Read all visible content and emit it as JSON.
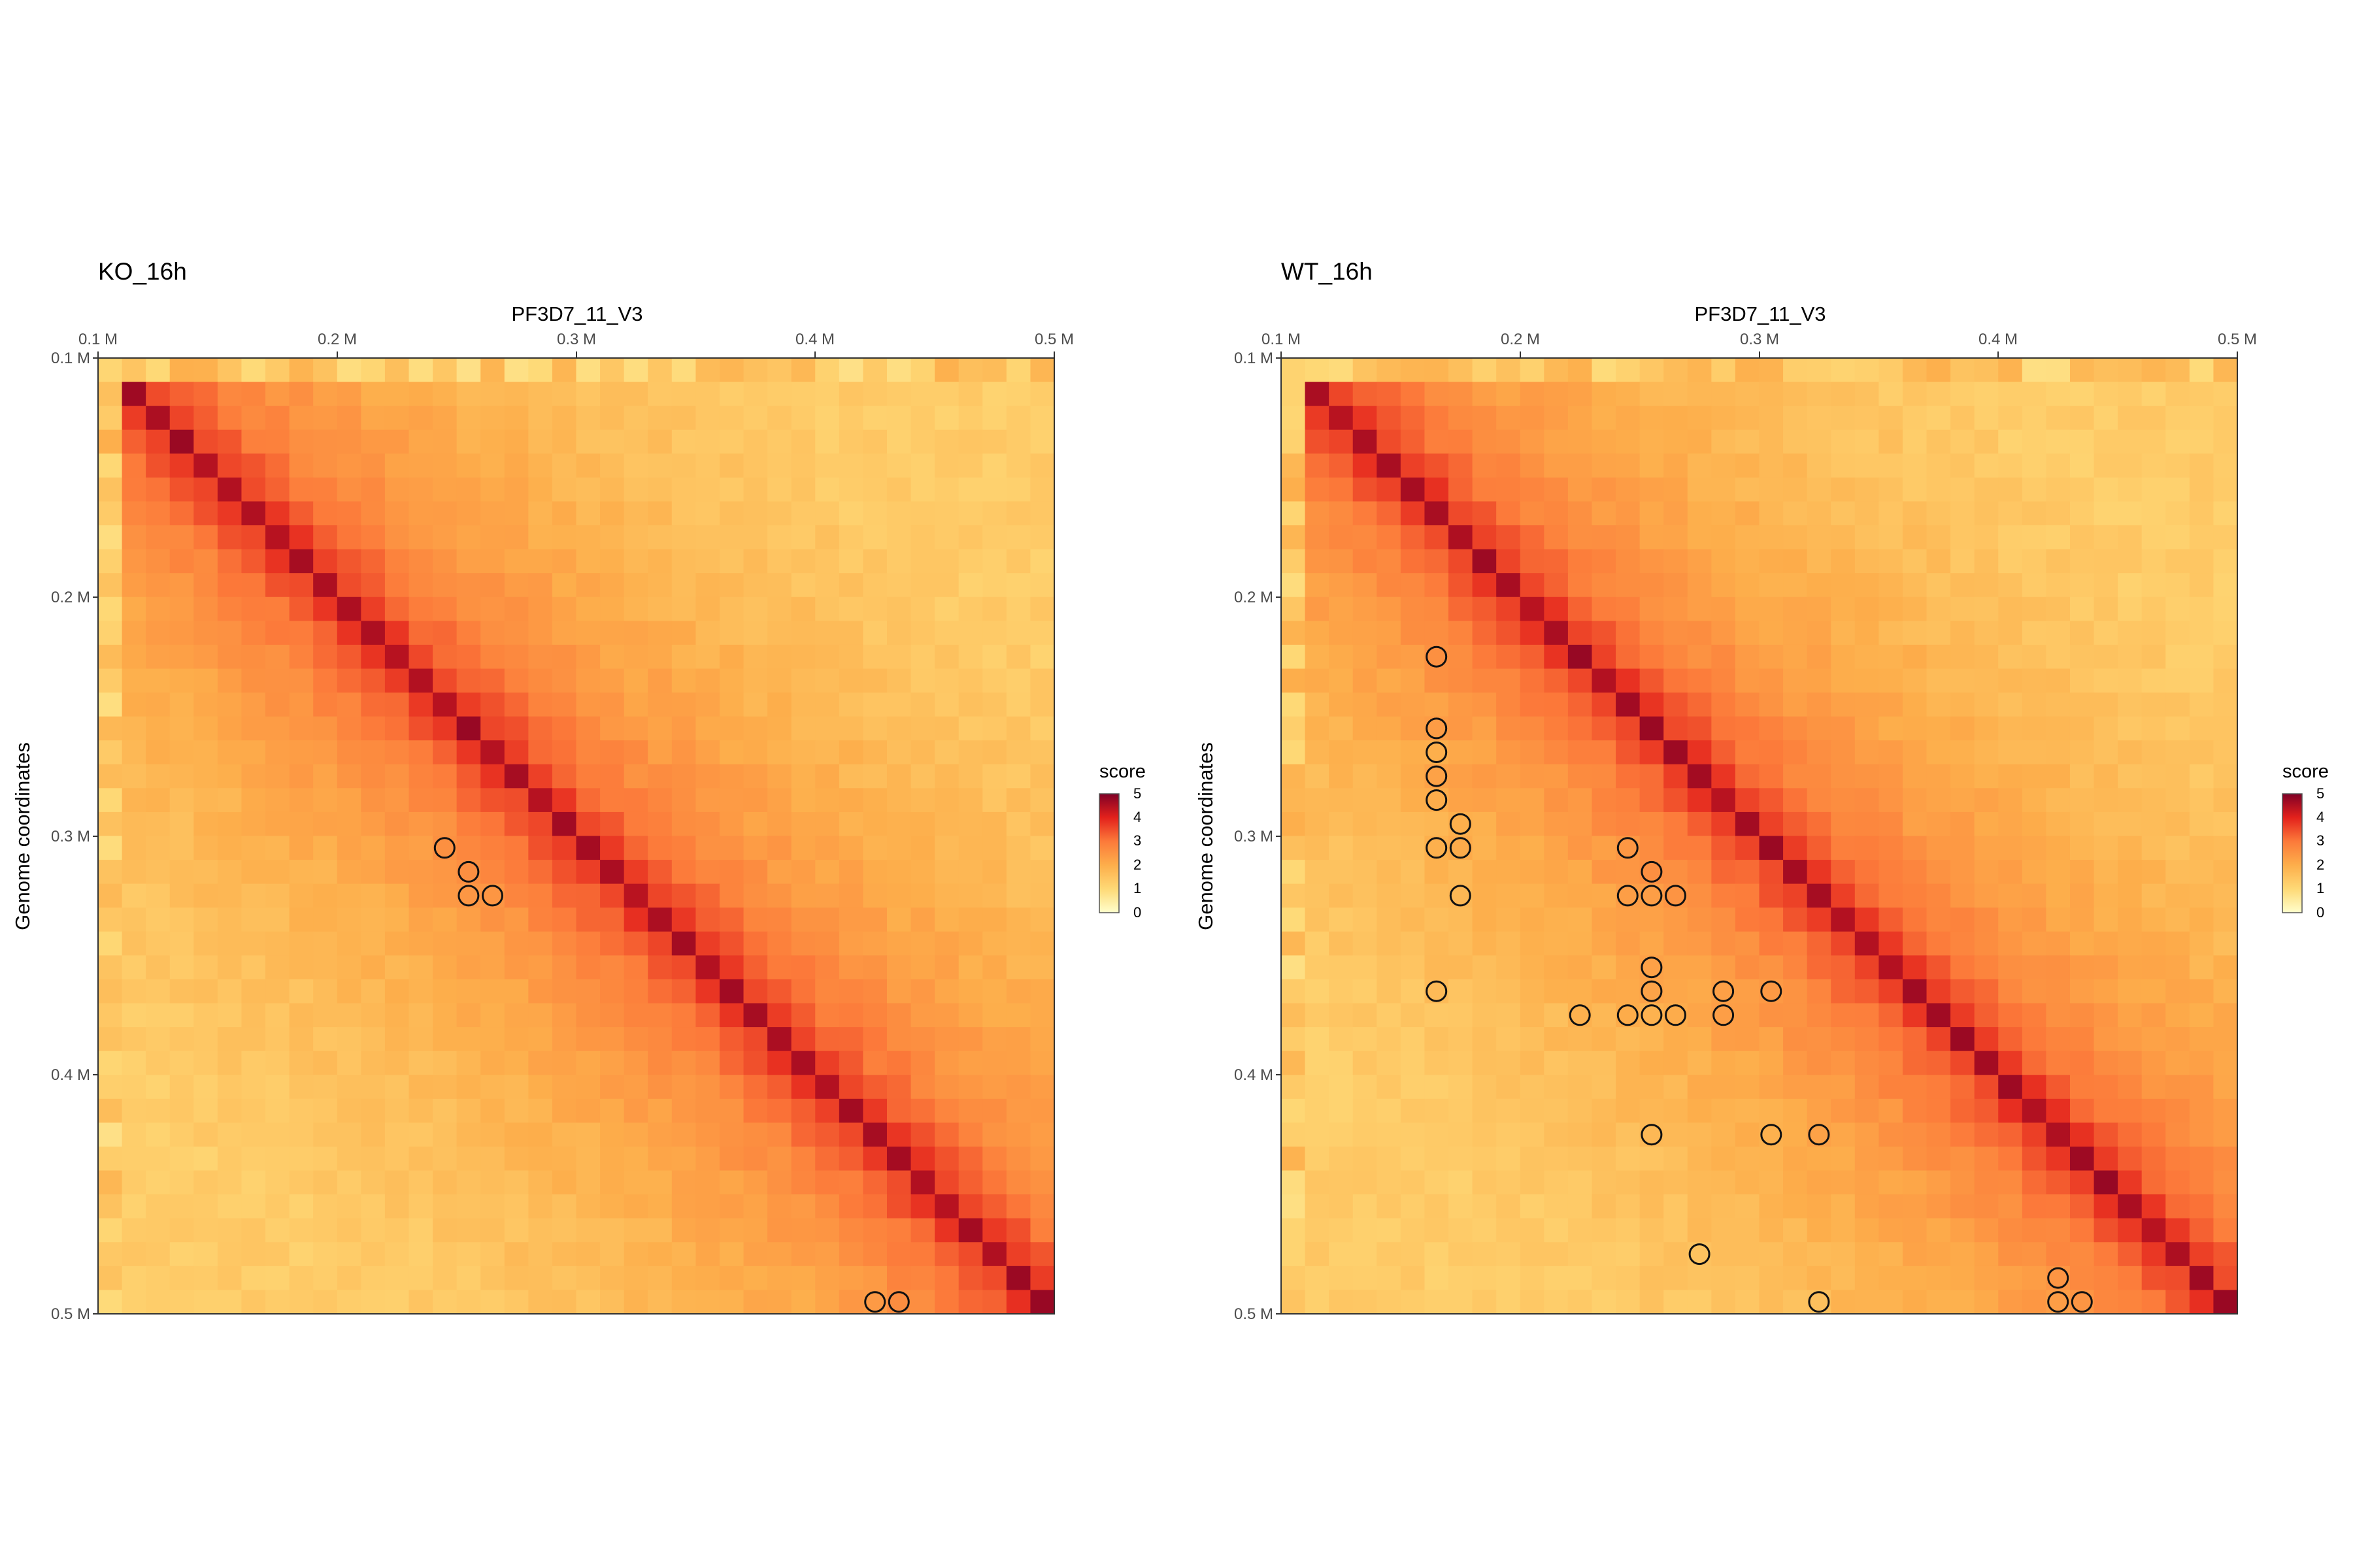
{
  "chart_data": [
    {
      "type": "heatmap",
      "title": "KO_16h",
      "xlabel": "PF3D7_11_V3",
      "ylabel": "Genome coordinates",
      "xlim": [
        100000,
        500000
      ],
      "ylim": [
        100000,
        500000
      ],
      "x_ticks": [
        "0.1 M",
        "0.2 M",
        "0.3 M",
        "0.4 M",
        "0.5 M"
      ],
      "y_ticks": [
        "0.1 M",
        "0.2 M",
        "0.3 M",
        "0.4 M",
        "0.5 M"
      ],
      "bin_size": 10000,
      "legend": {
        "title": "score",
        "ticks": [
          "0",
          "1",
          "2",
          "3",
          "4",
          "5"
        ],
        "range": [
          0,
          5
        ],
        "placement": "right"
      },
      "loops": [
        {
          "x": 245000,
          "y": 305000
        },
        {
          "x": 255000,
          "y": 315000
        },
        {
          "x": 255000,
          "y": 325000
        },
        {
          "x": 265000,
          "y": 325000
        },
        {
          "x": 425000,
          "y": 495000
        },
        {
          "x": 435000,
          "y": 495000
        }
      ]
    },
    {
      "type": "heatmap",
      "title": "WT_16h",
      "xlabel": "PF3D7_11_V3",
      "ylabel": "Genome coordinates",
      "xlim": [
        100000,
        500000
      ],
      "ylim": [
        100000,
        500000
      ],
      "x_ticks": [
        "0.1 M",
        "0.2 M",
        "0.3 M",
        "0.4 M",
        "0.5 M"
      ],
      "y_ticks": [
        "0.1 M",
        "0.2 M",
        "0.3 M",
        "0.4 M",
        "0.5 M"
      ],
      "bin_size": 10000,
      "legend": {
        "title": "score",
        "ticks": [
          "0",
          "1",
          "2",
          "3",
          "4",
          "5"
        ],
        "range": [
          0,
          5
        ],
        "placement": "right"
      },
      "loops": [
        {
          "x": 165000,
          "y": 225000
        },
        {
          "x": 165000,
          "y": 255000
        },
        {
          "x": 165000,
          "y": 265000
        },
        {
          "x": 165000,
          "y": 275000
        },
        {
          "x": 165000,
          "y": 285000
        },
        {
          "x": 175000,
          "y": 295000
        },
        {
          "x": 165000,
          "y": 305000
        },
        {
          "x": 175000,
          "y": 305000
        },
        {
          "x": 175000,
          "y": 325000
        },
        {
          "x": 165000,
          "y": 365000
        },
        {
          "x": 245000,
          "y": 305000
        },
        {
          "x": 255000,
          "y": 315000
        },
        {
          "x": 245000,
          "y": 325000
        },
        {
          "x": 255000,
          "y": 325000
        },
        {
          "x": 265000,
          "y": 325000
        },
        {
          "x": 255000,
          "y": 355000
        },
        {
          "x": 255000,
          "y": 365000
        },
        {
          "x": 285000,
          "y": 365000
        },
        {
          "x": 305000,
          "y": 365000
        },
        {
          "x": 225000,
          "y": 375000
        },
        {
          "x": 245000,
          "y": 375000
        },
        {
          "x": 255000,
          "y": 375000
        },
        {
          "x": 265000,
          "y": 375000
        },
        {
          "x": 285000,
          "y": 375000
        },
        {
          "x": 255000,
          "y": 425000
        },
        {
          "x": 305000,
          "y": 425000
        },
        {
          "x": 325000,
          "y": 425000
        },
        {
          "x": 275000,
          "y": 475000
        },
        {
          "x": 425000,
          "y": 485000
        },
        {
          "x": 325000,
          "y": 495000
        },
        {
          "x": 425000,
          "y": 495000
        },
        {
          "x": 435000,
          "y": 495000
        }
      ]
    }
  ]
}
